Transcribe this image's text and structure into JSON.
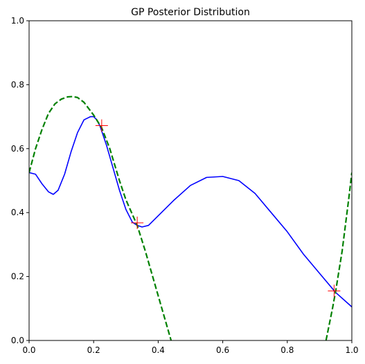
{
  "chart_data": {
    "type": "line",
    "title": "GP Posterior Distribution",
    "xlabel": "",
    "ylabel": "",
    "xlim": [
      0,
      1
    ],
    "ylim": [
      0,
      1
    ],
    "grid": false,
    "x_ticks": [
      "0.0",
      "0.2",
      "0.4",
      "0.6",
      "0.8",
      "1.0"
    ],
    "y_ticks": [
      "0.0",
      "0.2",
      "0.4",
      "0.6",
      "0.8",
      "1.0"
    ],
    "series": [
      {
        "style": "solid",
        "color": "#0000ff",
        "x": [
          0.0,
          0.02,
          0.04,
          0.06,
          0.075,
          0.09,
          0.11,
          0.13,
          0.15,
          0.17,
          0.19,
          0.2,
          0.21,
          0.22,
          0.24,
          0.26,
          0.28,
          0.3,
          0.32,
          0.335,
          0.35,
          0.37,
          0.4,
          0.45,
          0.5,
          0.55,
          0.6,
          0.65,
          0.7,
          0.75,
          0.8,
          0.85,
          0.9,
          0.95,
          1.0
        ],
        "y": [
          0.525,
          0.52,
          0.49,
          0.465,
          0.457,
          0.47,
          0.52,
          0.59,
          0.65,
          0.69,
          0.7,
          0.7,
          0.69,
          0.67,
          0.61,
          0.54,
          0.47,
          0.41,
          0.37,
          0.36,
          0.355,
          0.36,
          0.39,
          0.44,
          0.485,
          0.51,
          0.513,
          0.5,
          0.46,
          0.4,
          0.34,
          0.27,
          0.21,
          0.15,
          0.105
        ]
      },
      {
        "style": "dashed",
        "color": "#008000",
        "x": [
          0.0,
          0.02,
          0.04,
          0.06,
          0.08,
          0.1,
          0.12,
          0.135,
          0.15,
          0.17,
          0.2,
          0.225,
          0.25,
          0.28,
          0.3,
          0.335,
          0.36,
          0.38,
          0.4,
          0.42,
          0.44
        ],
        "y": [
          0.525,
          0.6,
          0.66,
          0.71,
          0.74,
          0.755,
          0.762,
          0.763,
          0.76,
          0.745,
          0.705,
          0.665,
          0.6,
          0.5,
          0.44,
          0.36,
          0.28,
          0.21,
          0.14,
          0.07,
          0.0
        ]
      },
      {
        "style": "dashed",
        "color": "#008000",
        "x": [
          0.92,
          0.94,
          0.95,
          0.97,
          0.99,
          1.0
        ],
        "y": [
          0.0,
          0.1,
          0.155,
          0.28,
          0.44,
          0.525
        ]
      }
    ],
    "points": {
      "marker": "+",
      "color": "#ff0000",
      "x": [
        0.225,
        0.335,
        0.945
      ],
      "y": [
        0.672,
        0.368,
        0.155
      ]
    }
  }
}
